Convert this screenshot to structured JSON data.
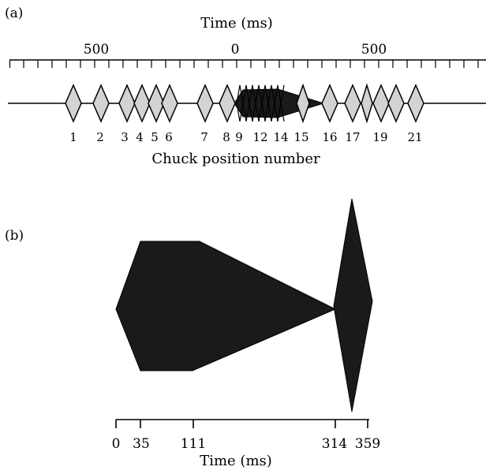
{
  "panel_a": {
    "label": "(a)",
    "axis_title": "Time (ms)",
    "axis_tick_labels": [
      "500",
      "0",
      "500"
    ],
    "chuck_labels": [
      "1",
      "2",
      "3",
      "4",
      "5",
      "6",
      "7",
      "8",
      "9",
      "12",
      "14",
      "15",
      "16",
      "17",
      "19",
      "21"
    ],
    "footer": "Chuck position number"
  },
  "panel_b": {
    "label": "(b)",
    "axis_title": "Time (ms)",
    "tick_labels": [
      "0",
      "35",
      "111",
      "314",
      "359"
    ]
  },
  "colors": {
    "diamond_fill": "#d3d3d3",
    "shape_fill": "#1a1a1a",
    "stroke": "#000000"
  }
}
